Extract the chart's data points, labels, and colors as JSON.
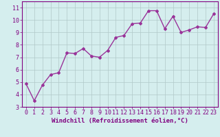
{
  "x": [
    0,
    1,
    2,
    3,
    4,
    5,
    6,
    7,
    8,
    9,
    10,
    11,
    12,
    13,
    14,
    15,
    16,
    17,
    18,
    19,
    20,
    21,
    22,
    23
  ],
  "y": [
    4.85,
    3.5,
    4.75,
    5.6,
    5.75,
    7.35,
    7.3,
    7.7,
    7.1,
    7.0,
    7.55,
    8.6,
    8.75,
    9.7,
    9.75,
    10.75,
    10.75,
    9.3,
    10.3,
    9.0,
    9.2,
    9.45,
    9.4,
    10.5
  ],
  "line_color": "#993399",
  "marker": "D",
  "marker_size": 2,
  "xlabel": "Windchill (Refroidissement éolien,°C)",
  "xlim": [
    -0.5,
    23.5
  ],
  "ylim": [
    3,
    11.5
  ],
  "yticks": [
    3,
    4,
    5,
    6,
    7,
    8,
    9,
    10,
    11
  ],
  "xticks": [
    0,
    1,
    2,
    3,
    4,
    5,
    6,
    7,
    8,
    9,
    10,
    11,
    12,
    13,
    14,
    15,
    16,
    17,
    18,
    19,
    20,
    21,
    22,
    23
  ],
  "background_color": "#d5eeee",
  "grid_color": "#b0c8c8",
  "tick_color": "#800080",
  "label_color": "#800080",
  "axis_color": "#800080",
  "xlabel_fontsize": 6.5,
  "tick_fontsize": 6,
  "line_width": 1.0
}
